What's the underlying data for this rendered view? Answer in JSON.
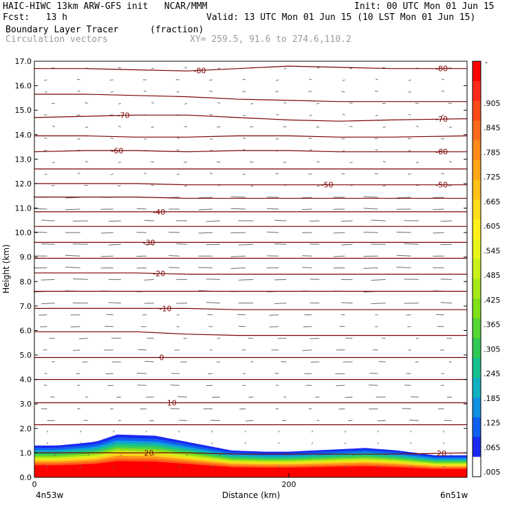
{
  "header": {
    "model_line": "HAIC-HIWC 13km ARW-GFS init   NCAR/MMM",
    "init": "Init: 00 UTC Mon 01 Jun 15",
    "fcst": "Fcst:   13 h",
    "valid": "Valid: 13 UTC Mon 01 Jun 15 (10 LST Mon 01 Jun 15)",
    "field": "Boundary Layer Tracer",
    "field_units": "(fraction)",
    "vectors": "Circulation vectors",
    "xy": "XY= 259.5, 91.6 to 274.6,110.2"
  },
  "chart_data": {
    "type": "heatmap",
    "xlabel": "Distance (km)",
    "ylabel": "Height (km)",
    "xlim": [
      0,
      340
    ],
    "ylim": [
      0,
      17
    ],
    "x_ticks": [
      {
        "value": 0,
        "label": "0"
      },
      {
        "value": 200,
        "label": "200"
      }
    ],
    "x_end_labels": {
      "left": "4n53w",
      "right": "6n51w"
    },
    "y_ticks": [
      "0.0",
      "1.0",
      "2.0",
      "3.0",
      "4.0",
      "5.0",
      "6.0",
      "7.0",
      "8.0",
      "9.0",
      "10.0",
      "11.0",
      "12.0",
      "13.0",
      "14.0",
      "15.0",
      "16.0",
      "17.0"
    ],
    "grid": false,
    "colorbar": {
      "top_label": "-",
      "labels": [
        ".905",
        ".845",
        ".785",
        ".725",
        ".665",
        ".605",
        ".545",
        ".485",
        ".425",
        ".365",
        ".305",
        ".245",
        ".185",
        ".125",
        ".065",
        ".005"
      ],
      "colors": [
        "#ff0000",
        "#ff2a1a",
        "#ff4a1a",
        "#ff6a1a",
        "#ff8a1a",
        "#ffa51a",
        "#ffc01a",
        "#ffdc1a",
        "#fff01a",
        "#e8f51a",
        "#c8f01a",
        "#a6e81a",
        "#80e01a",
        "#55d635",
        "#30c855",
        "#18c090",
        "#10b0c0",
        "#1090e0",
        "#1060f0",
        "#1a2af0",
        "#ffffff"
      ]
    },
    "temperature_contours": [
      {
        "label": "-80",
        "z": [
          16.7,
          16.7,
          16.65,
          16.6,
          16.7,
          16.8,
          16.75,
          16.7,
          16.7
        ]
      },
      {
        "label": "",
        "z": [
          15.65,
          15.65,
          15.6,
          15.55,
          15.45,
          15.4,
          15.35,
          15.35,
          15.35
        ]
      },
      {
        "label": "-70",
        "z": [
          14.7,
          14.75,
          14.8,
          14.8,
          14.7,
          14.6,
          14.55,
          14.6,
          14.65
        ]
      },
      {
        "label": "",
        "z": [
          13.95,
          13.95,
          13.9,
          13.9,
          13.95,
          13.95,
          13.9,
          13.9,
          13.95
        ]
      },
      {
        "label": "-60",
        "z": [
          13.3,
          13.35,
          13.35,
          13.3,
          13.35,
          13.35,
          13.3,
          13.3,
          13.3
        ]
      },
      {
        "label": "",
        "z": [
          12.6,
          12.6,
          12.6,
          12.6,
          12.6,
          12.6,
          12.6,
          12.6,
          12.6
        ]
      },
      {
        "label": "-50",
        "z": [
          12.0,
          12.0,
          12.0,
          11.95,
          11.95,
          11.95,
          11.95,
          11.95,
          11.95
        ]
      },
      {
        "label": "",
        "z": [
          11.45,
          11.45,
          11.45,
          11.4,
          11.4,
          11.4,
          11.4,
          11.4,
          11.4
        ]
      },
      {
        "label": "-40",
        "z": [
          10.85,
          10.85,
          10.85,
          10.85,
          10.85,
          10.85,
          10.85,
          10.85,
          10.85
        ]
      },
      {
        "label": "",
        "z": [
          10.25,
          10.25,
          10.25,
          10.25,
          10.25,
          10.25,
          10.25,
          10.25,
          10.25
        ]
      },
      {
        "label": "-30",
        "z": [
          9.6,
          9.6,
          9.6,
          9.6,
          9.6,
          9.6,
          9.6,
          9.6,
          9.6
        ]
      },
      {
        "label": "",
        "z": [
          8.95,
          8.95,
          8.95,
          8.95,
          8.95,
          8.95,
          8.95,
          8.95,
          8.95
        ]
      },
      {
        "label": "-20",
        "z": [
          8.35,
          8.35,
          8.35,
          8.3,
          8.3,
          8.3,
          8.3,
          8.3,
          8.3
        ]
      },
      {
        "label": "",
        "z": [
          7.6,
          7.6,
          7.6,
          7.6,
          7.6,
          7.6,
          7.6,
          7.6,
          7.6
        ]
      },
      {
        "label": "-10",
        "z": [
          6.9,
          6.9,
          6.9,
          6.9,
          6.85,
          6.85,
          6.85,
          6.85,
          6.85
        ]
      },
      {
        "label": "",
        "z": [
          5.95,
          5.95,
          5.95,
          5.85,
          5.8,
          5.8,
          5.8,
          5.8,
          5.8
        ]
      },
      {
        "label": "0",
        "z": [
          4.9,
          4.9,
          4.9,
          4.9,
          4.9,
          4.9,
          4.9,
          4.9,
          4.9
        ]
      },
      {
        "label": "",
        "z": [
          4.0,
          4.0,
          4.0,
          4.0,
          4.0,
          4.0,
          4.0,
          4.0,
          4.0
        ]
      },
      {
        "label": "10",
        "z": [
          3.05,
          3.05,
          3.05,
          3.05,
          3.05,
          3.05,
          3.05,
          3.05,
          3.05
        ]
      },
      {
        "label": "",
        "z": [
          2.15,
          2.15,
          2.15,
          2.15,
          2.15,
          2.15,
          2.15,
          2.15,
          2.15
        ]
      },
      {
        "label": "20",
        "z": [
          1.0,
          1.0,
          1.0,
          1.0,
          0.95,
          0.95,
          0.95,
          0.95,
          1.0
        ]
      }
    ],
    "contour_x": [
      0,
      40,
      80,
      120,
      160,
      200,
      240,
      280,
      340
    ],
    "tracer_top_km": {
      "x": [
        0,
        18,
        48,
        65,
        95,
        110,
        135,
        155,
        180,
        200,
        240,
        260,
        285,
        315,
        340
      ],
      "z": [
        1.3,
        1.3,
        1.45,
        1.75,
        1.7,
        1.55,
        1.3,
        1.1,
        1.05,
        1.05,
        1.15,
        1.2,
        1.1,
        0.9,
        0.9
      ]
    }
  }
}
